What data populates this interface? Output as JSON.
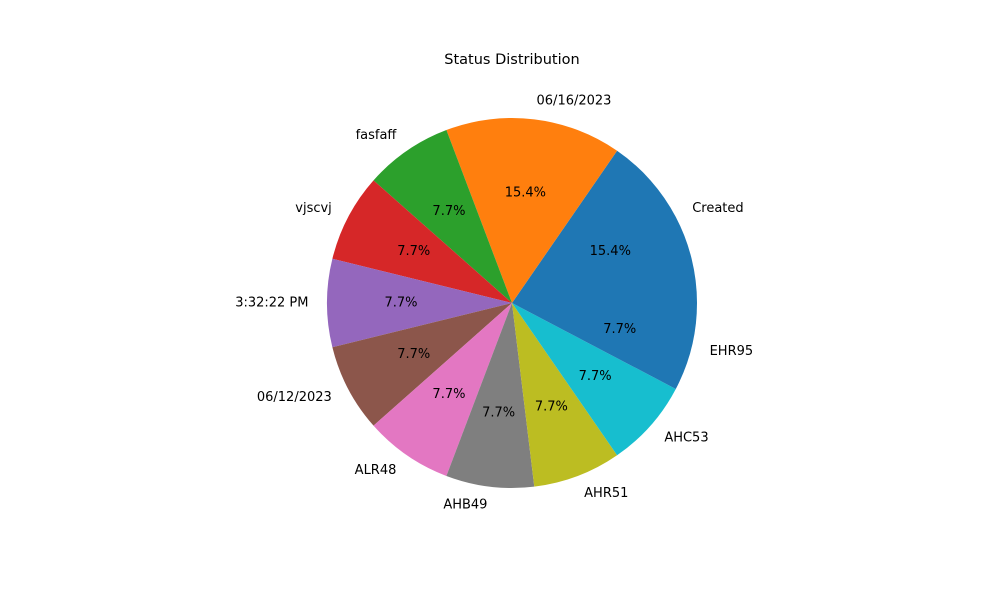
{
  "chart_data": {
    "type": "pie",
    "title": "Status Distribution",
    "start_angle_deg": 0,
    "direction": "counterclockwise",
    "slices": [
      {
        "label": "Created",
        "value": 2,
        "percent_label": "15.4%",
        "color": "#1f77b4"
      },
      {
        "label": "06/16/2023",
        "value": 2,
        "percent_label": "15.4%",
        "color": "#ff7f0e"
      },
      {
        "label": "fasfaff",
        "value": 1,
        "percent_label": "7.7%",
        "color": "#2ca02c"
      },
      {
        "label": "vjscvj",
        "value": 1,
        "percent_label": "7.7%",
        "color": "#d62728"
      },
      {
        "label": "3:32:22 PM",
        "value": 1,
        "percent_label": "7.7%",
        "color": "#9467bd"
      },
      {
        "label": "06/12/2023",
        "value": 1,
        "percent_label": "7.7%",
        "color": "#8c564b"
      },
      {
        "label": "ALR48",
        "value": 1,
        "percent_label": "7.7%",
        "color": "#e377c2"
      },
      {
        "label": "AHB49",
        "value": 1,
        "percent_label": "7.7%",
        "color": "#7f7f7f"
      },
      {
        "label": "AHR51",
        "value": 1,
        "percent_label": "7.7%",
        "color": "#bcbd22"
      },
      {
        "label": "AHC53",
        "value": 1,
        "percent_label": "7.7%",
        "color": "#17becf"
      },
      {
        "label": "EHR95",
        "value": 1,
        "percent_label": "7.7%",
        "color": "#1f77b4"
      }
    ]
  }
}
